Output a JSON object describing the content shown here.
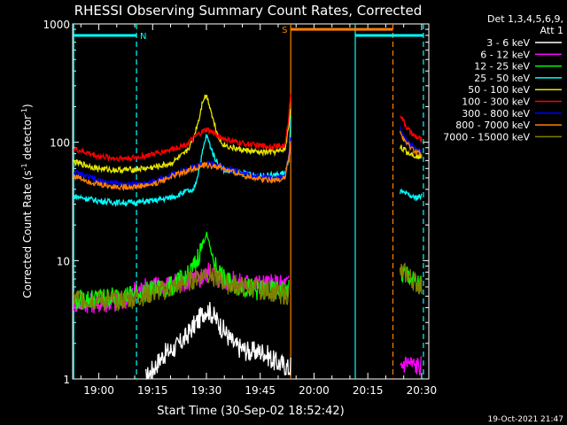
{
  "chart_data": {
    "type": "line",
    "title": "RHESSI Observing Summary Count Rates, Corrected",
    "xlabel": "Start Time (30-Sep-02 18:52:42)",
    "ylabel_main": "Corrected Count Rate (s",
    "ylabel_sup1": "-1",
    "ylabel_mid": " detector",
    "ylabel_sup2": "-1",
    "ylabel_end": ")",
    "yscale": "log",
    "ylim": [
      1,
      1000
    ],
    "xlim_minutes": [
      52.7,
      152.0
    ],
    "x_units": "minutes after 18:00 UT on 30-Sep-02",
    "xticks": [
      {
        "v": 60,
        "label": "19:00"
      },
      {
        "v": 75,
        "label": "19:15"
      },
      {
        "v": 90,
        "label": "19:30"
      },
      {
        "v": 105,
        "label": "19:45"
      },
      {
        "v": 120,
        "label": "20:00"
      },
      {
        "v": 135,
        "label": "20:15"
      },
      {
        "v": 150,
        "label": "20:30"
      }
    ],
    "yticks": [
      {
        "v": 1,
        "label": "1"
      },
      {
        "v": 10,
        "label": "10"
      },
      {
        "v": 100,
        "label": "100"
      },
      {
        "v": 1000,
        "label": "1000"
      }
    ],
    "legend_header": [
      "Det 1,3,4,5,6,9,",
      "Att 1"
    ],
    "legend_placement": "right",
    "timestamp": "19-Oct-2021 21:47",
    "flags": [
      {
        "label": "N",
        "color": "#00ffff",
        "x0": 53,
        "x1": 70.5,
        "y": 800
      },
      {
        "label": "S",
        "color": "#ff8000",
        "x0": 113.5,
        "x1": 142,
        "y": 900
      },
      {
        "label": "",
        "color": "#00ffff",
        "x0": 131.5,
        "x1": 150.5,
        "y": 800
      }
    ],
    "vlines": [
      {
        "x": 53,
        "color": "#00ffff",
        "dash": false
      },
      {
        "x": 70.5,
        "color": "#00ffff",
        "dash": true
      },
      {
        "x": 113.5,
        "color": "#ff8000",
        "dash": false
      },
      {
        "x": 131.5,
        "color": "#00ffff",
        "dash": false
      },
      {
        "x": 142,
        "color": "#ff8000",
        "dash": true
      },
      {
        "x": 150.5,
        "color": "#00ffff",
        "dash": true
      }
    ],
    "series": [
      {
        "name": "3 - 6 keV",
        "color": "#ffffff",
        "segments": [
          {
            "x": [
              73,
              78,
              82,
              84,
              86,
              88,
              89,
              90,
              91,
              92,
              93,
              94,
              96,
              98,
              102,
              106,
              109,
              112,
              113,
              113.5
            ],
            "y": [
              1,
              1.6,
              1.9,
              2.2,
              2.7,
              3.2,
              3.6,
              3.9,
              3.7,
              3.4,
              3.1,
              2.8,
              2.3,
              1.9,
              1.7,
              1.7,
              1.4,
              1.3,
              1.2,
              1.3
            ]
          }
        ]
      },
      {
        "name": "6 - 12 keV",
        "color": "#ff00ff",
        "segments": [
          {
            "x": [
              53,
              60,
              66,
              70,
              75,
              80,
              85,
              88,
              90,
              91,
              92,
              93,
              95,
              100,
              105,
              110,
              113
            ],
            "y": [
              4.4,
              4.4,
              4.4,
              5.5,
              6.2,
              6.3,
              6.6,
              7.0,
              7.6,
              8.5,
              7.8,
              7.2,
              6.8,
              6.5,
              6.4,
              6.3,
              6.4
            ]
          },
          {
            "x": [
              144,
              146,
              148,
              150
            ],
            "y": [
              1.3,
              1.4,
              1.3,
              1.3
            ]
          }
        ]
      },
      {
        "name": "12 - 25 keV",
        "color": "#00ff00",
        "segments": [
          {
            "x": [
              53,
              60,
              66,
              70,
              75,
              80,
              85,
              87,
              89,
              90,
              91,
              92,
              93,
              95,
              100,
              105,
              110,
              113
            ],
            "y": [
              4.6,
              4.8,
              5.0,
              5.2,
              5.6,
              6.0,
              7.5,
              9.5,
              14,
              17,
              13,
              10,
              8.5,
              6.8,
              6.0,
              5.6,
              5.5,
              5.6
            ]
          },
          {
            "x": [
              144,
              146,
              148,
              150
            ],
            "y": [
              7.5,
              7.8,
              6.5,
              6.2
            ]
          }
        ]
      },
      {
        "name": "25 - 50 keV",
        "color": "#00ffff",
        "segments": [
          {
            "x": [
              53,
              60,
              65,
              70,
              75,
              80,
              85,
              86,
              87,
              88,
              89,
              90,
              91,
              92,
              93,
              95,
              100,
              105,
              110,
              112,
              113,
              113.5
            ],
            "y": [
              35,
              32,
              31,
              31,
              32,
              34,
              39,
              37,
              45,
              60,
              85,
              115,
              95,
              78,
              68,
              58,
              55,
              52,
              53,
              56,
              70,
              160
            ]
          },
          {
            "x": [
              144,
              146,
              148,
              150
            ],
            "y": [
              38,
              36,
              34,
              35
            ]
          }
        ]
      },
      {
        "name": "50 - 100 keV",
        "color": "#e6e600",
        "segments": [
          {
            "x": [
              53,
              60,
              65,
              70,
              75,
              80,
              84,
              86,
              88,
              89,
              90,
              91,
              92,
              93,
              94,
              95,
              97,
              100,
              105,
              110,
              112,
              113,
              113.5
            ],
            "y": [
              68,
              60,
              58,
              59,
              61,
              66,
              80,
              100,
              160,
              230,
              250,
              200,
              150,
              120,
              100,
              95,
              90,
              86,
              82,
              83,
              88,
              140,
              200
            ]
          },
          {
            "x": [
              144,
              146,
              148,
              150
            ],
            "y": [
              92,
              82,
              78,
              75
            ]
          }
        ]
      },
      {
        "name": "100 - 300 keV",
        "color": "#ff0000",
        "segments": [
          {
            "x": [
              53,
              60,
              65,
              70,
              75,
              80,
              84,
              86,
              88,
              90,
              92,
              94,
              96,
              100,
              105,
              110,
              112,
              113,
              113.5
            ],
            "y": [
              88,
              76,
              73,
              74,
              79,
              87,
              95,
              105,
              118,
              128,
              120,
              110,
              104,
              98,
              93,
              92,
              95,
              170,
              260
            ]
          },
          {
            "x": [
              144,
              145,
              146,
              148,
              150
            ],
            "y": [
              175,
              150,
              130,
              112,
              105
            ]
          }
        ]
      },
      {
        "name": "300 - 800 keV",
        "color": "#0000ff",
        "segments": [
          {
            "x": [
              53,
              60,
              65,
              70,
              75,
              80,
              85,
              88,
              90,
              92,
              94,
              96,
              100,
              105,
              110,
              112,
              113,
              113.5
            ],
            "y": [
              56,
              47,
              45,
              44,
              46,
              53,
              60,
              64,
              66,
              65,
              62,
              59,
              55,
              51,
              50,
              53,
              80,
              110
            ]
          },
          {
            "x": [
              144,
              146,
              148,
              150
            ],
            "y": [
              130,
              100,
              90,
              82
            ]
          }
        ]
      },
      {
        "name": "800 - 7000 keV",
        "color": "#ff8000",
        "segments": [
          {
            "x": [
              53,
              60,
              65,
              70,
              75,
              80,
              85,
              88,
              90,
              92,
              94,
              96,
              100,
              105,
              110,
              112,
              113,
              113.5
            ],
            "y": [
              52,
              44,
              42,
              42,
              44,
              51,
              58,
              62,
              64,
              63,
              61,
              57,
              53,
              49,
              48,
              51,
              75,
              100
            ]
          },
          {
            "x": [
              144,
              146,
              148,
              150
            ],
            "y": [
              120,
              95,
              85,
              78
            ]
          }
        ]
      },
      {
        "name": "7000 - 15000 keV",
        "color": "#808000",
        "segments": [
          {
            "x": [
              53,
              60,
              65,
              70,
              75,
              80,
              85,
              88,
              90,
              92,
              94,
              96,
              100,
              105,
              110,
              113
            ],
            "y": [
              4.8,
              4.6,
              4.6,
              4.8,
              5.3,
              5.8,
              6.6,
              7.4,
              8.0,
              7.4,
              6.8,
              6.3,
              6.0,
              5.8,
              5.3,
              5.1
            ]
          },
          {
            "x": [
              144,
              146,
              148,
              150
            ],
            "y": [
              8.0,
              7.6,
              6.6,
              6.0
            ]
          }
        ]
      }
    ]
  }
}
